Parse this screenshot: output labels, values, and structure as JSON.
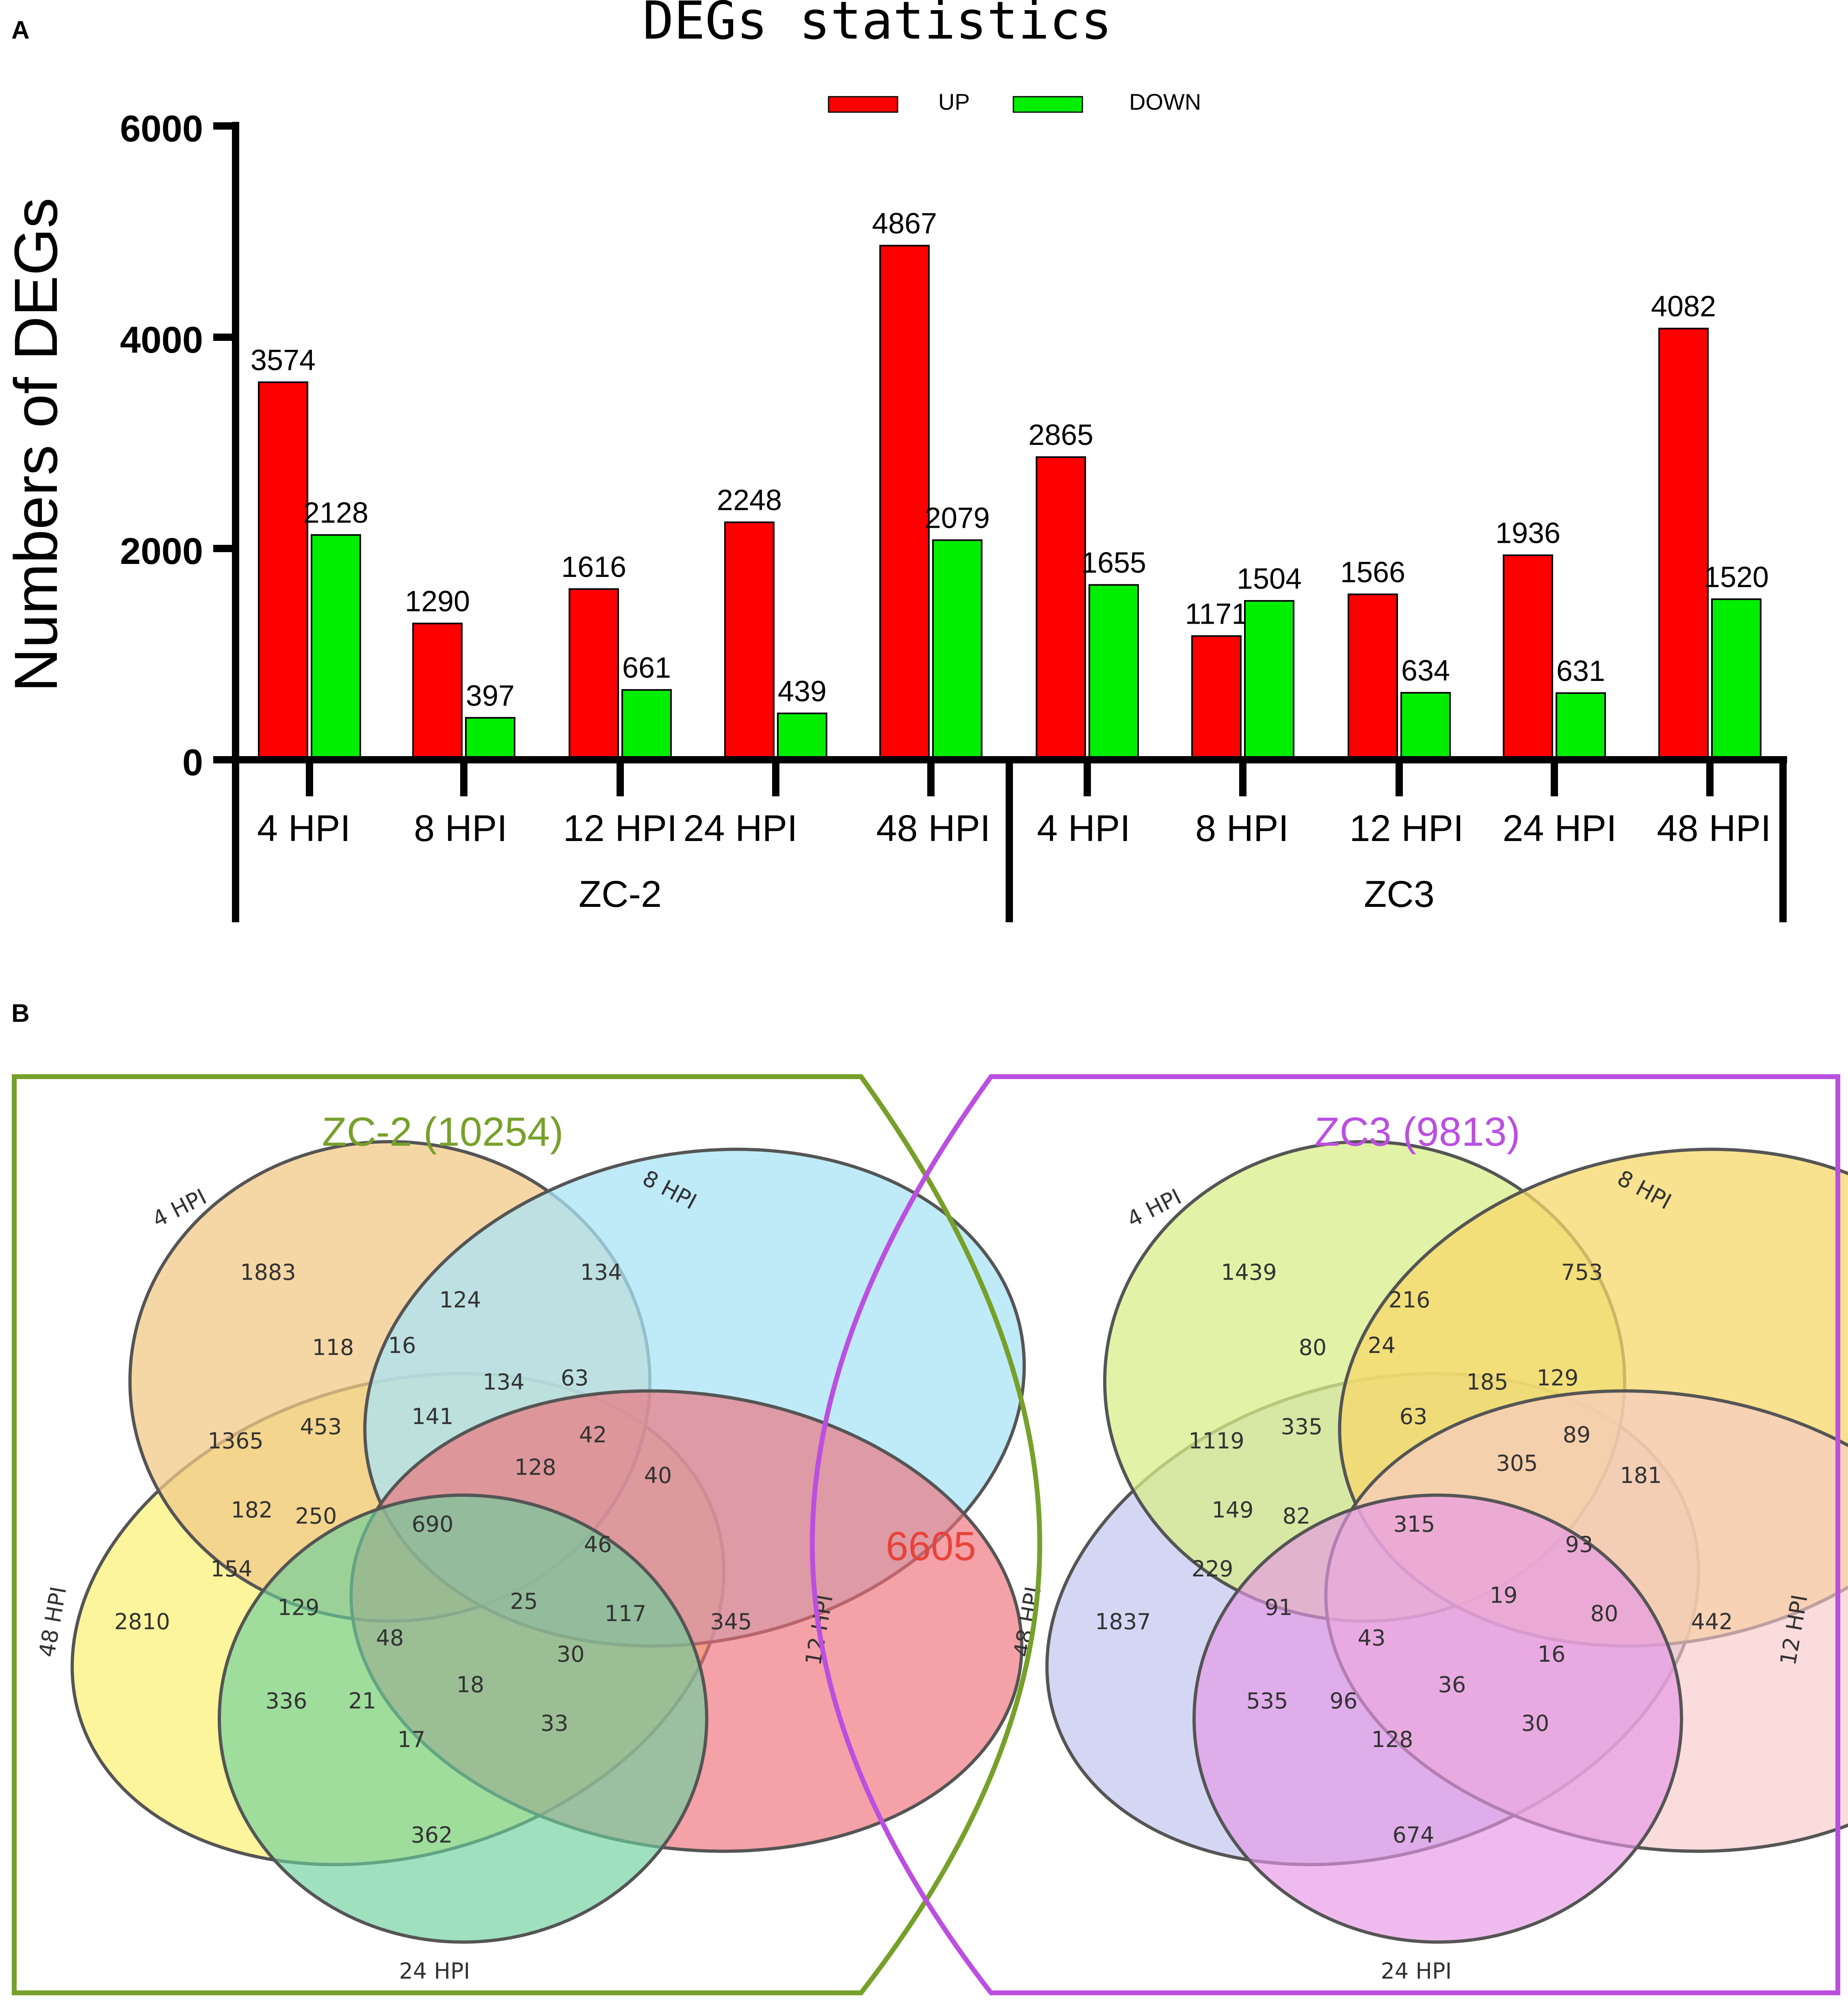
{
  "panel_a": {
    "label": "A",
    "chart_data": {
      "type": "bar",
      "title": "DEGs statistics",
      "ylabel": "Numbers of DEGs",
      "xlabel": "",
      "ylim": [
        0,
        6000
      ],
      "yticks": [
        "0",
        "2000",
        "4000",
        "6000"
      ],
      "legend": {
        "position": "top-center",
        "items": [
          "UP",
          "DOWN"
        ]
      },
      "colors": {
        "UP": "#ff0000",
        "DOWN": "#00ee00"
      },
      "groups": [
        {
          "name": "ZC-2",
          "categories": [
            "4 HPI",
            "8 HPI",
            "12 HPI",
            "24 HPI",
            "48 HPI"
          ]
        },
        {
          "name": "ZC3",
          "categories": [
            "4 HPI",
            "8 HPI",
            "12 HPI",
            "24 HPI",
            "48 HPI"
          ]
        }
      ],
      "series": [
        {
          "name": "UP",
          "values": [
            3574,
            1290,
            1616,
            2248,
            4867,
            2865,
            1171,
            1566,
            1936,
            4082
          ]
        },
        {
          "name": "DOWN",
          "values": [
            2128,
            397,
            661,
            439,
            2079,
            1655,
            1504,
            634,
            631,
            1520
          ]
        }
      ]
    }
  },
  "panel_b": {
    "label": "B",
    "overlap": "6605",
    "colors": {
      "left_frame": "#77a02a",
      "right_frame": "#bb4fe0",
      "overlap_text": "#e8433a"
    },
    "left": {
      "title": "ZC-2 (10254)",
      "sets": [
        "4 HPI",
        "8 HPI",
        "12 HPI",
        "24 HPI",
        "48 HPI"
      ],
      "regions": [
        "1883",
        "124",
        "134",
        "118",
        "16",
        "134",
        "63",
        "1365",
        "453",
        "141",
        "42",
        "128",
        "40",
        "182",
        "250",
        "690",
        "46",
        "154",
        "25",
        "117",
        "345",
        "2810",
        "129",
        "48",
        "30",
        "18",
        "336",
        "21",
        "33",
        "17",
        "362"
      ]
    },
    "right": {
      "title": "ZC3 (9813)",
      "sets": [
        "4 HPI",
        "8 HPI",
        "12 HPI",
        "24 HPI",
        "48 HPI"
      ],
      "regions": [
        "1439",
        "216",
        "753",
        "80",
        "24",
        "185",
        "129",
        "1119",
        "335",
        "63",
        "305",
        "89",
        "181",
        "149",
        "82",
        "315",
        "93",
        "229",
        "19",
        "80",
        "442",
        "1837",
        "91",
        "43",
        "16",
        "36",
        "535",
        "96",
        "30",
        "128",
        "674"
      ]
    }
  }
}
